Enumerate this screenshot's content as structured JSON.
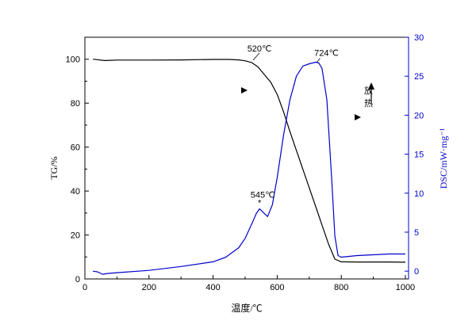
{
  "chart_data": {
    "type": "line",
    "xlabel": "温度/℃",
    "ylabel_left": "TG/%",
    "ylabel_right": "DSC/mW·mg⁻¹",
    "xlim": [
      0,
      1010
    ],
    "ylim_left": [
      0,
      110
    ],
    "ylim_right": [
      -1,
      30
    ],
    "x_ticks": [
      0,
      200,
      400,
      600,
      800,
      1000
    ],
    "y_left_ticks": [
      0,
      20,
      40,
      60,
      80,
      100
    ],
    "y_right_ticks": [
      0,
      5,
      10,
      15,
      20,
      25,
      30
    ],
    "grid": false,
    "legend": "none",
    "series": [
      {
        "axis": "left",
        "color": "#000000",
        "x": [
          25,
          40,
          60,
          80,
          100,
          200,
          300,
          400,
          450,
          480,
          500,
          520,
          540,
          560,
          580,
          600,
          620,
          640,
          660,
          680,
          700,
          720,
          740,
          760,
          780,
          800,
          850,
          900,
          950,
          1000
        ],
        "y": [
          100,
          99.8,
          99.4,
          99.5,
          99.6,
          99.6,
          99.7,
          99.9,
          99.9,
          99.7,
          99.3,
          98.5,
          96.5,
          93,
          89.5,
          84,
          76,
          67,
          58.5,
          50,
          41.5,
          33,
          24.5,
          16,
          9,
          7.8,
          7.7,
          7.7,
          7.7,
          7.6
        ]
      },
      {
        "axis": "right",
        "color": "#0000cc",
        "x": [
          25,
          40,
          55,
          70,
          100,
          200,
          300,
          400,
          440,
          480,
          500,
          520,
          535,
          545,
          555,
          570,
          585,
          600,
          620,
          640,
          660,
          680,
          700,
          720,
          730,
          740,
          755,
          770,
          780,
          790,
          800,
          850,
          900,
          950,
          1000
        ],
        "y": [
          0,
          -0.1,
          -0.4,
          -0.3,
          -0.2,
          0.1,
          0.6,
          1.2,
          1.8,
          3.0,
          4.2,
          6.0,
          7.4,
          8.0,
          7.6,
          7.0,
          8.5,
          12.0,
          17.5,
          22.0,
          25.0,
          26.3,
          26.6,
          26.8,
          26.7,
          26.0,
          22.0,
          12.0,
          4.5,
          2.0,
          1.8,
          2.0,
          2.1,
          2.2,
          2.2
        ]
      }
    ],
    "annotations": [
      {
        "text": "520℃",
        "x": 520,
        "y": 98.5,
        "axis": "left"
      },
      {
        "text": "724℃",
        "x": 724,
        "y": 26.8,
        "axis": "right"
      },
      {
        "text": "545℃",
        "x": 545,
        "y": 8.0,
        "axis": "right"
      },
      {
        "text": "放",
        "x": 885,
        "axis": "none"
      },
      {
        "text": "热",
        "x": 885,
        "axis": "none"
      }
    ]
  }
}
